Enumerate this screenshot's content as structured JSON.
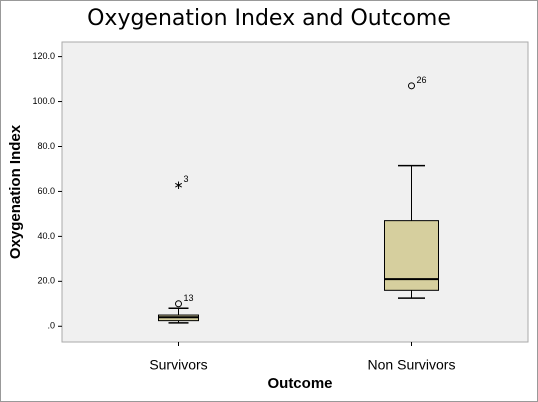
{
  "chart_data": {
    "type": "box",
    "title": "Oxygenation Index and Outcome",
    "x_label": "Outcome",
    "y_label": "Oxygenation Index",
    "categories": [
      "Survivors",
      "Non Survivors"
    ],
    "color": "#d6cf9e",
    "ylim": [
      -7,
      126.5
    ],
    "yticks": [
      {
        "value": 0,
        "label": ".0"
      },
      {
        "value": 20,
        "label": "20.0"
      },
      {
        "value": 40,
        "label": "40.0"
      },
      {
        "value": 60,
        "label": "60.0"
      },
      {
        "value": 80,
        "label": "80.0"
      },
      {
        "value": 100,
        "label": "100.0"
      },
      {
        "value": 120,
        "label": "120.0"
      }
    ],
    "boxes": [
      {
        "whislo": 1.5,
        "q1": 2.5,
        "med": 4,
        "q3": 5,
        "whishi": 8,
        "outliers": [
          {
            "value": 10,
            "label": "13",
            "marker": "circle"
          },
          {
            "value": 63,
            "label": "3",
            "marker": "star"
          }
        ]
      },
      {
        "whislo": 12.5,
        "q1": 16,
        "med": 21,
        "q3": 47,
        "whishi": 71.5,
        "outliers": [
          {
            "value": 107,
            "label": "26",
            "marker": "circle"
          }
        ]
      }
    ]
  }
}
